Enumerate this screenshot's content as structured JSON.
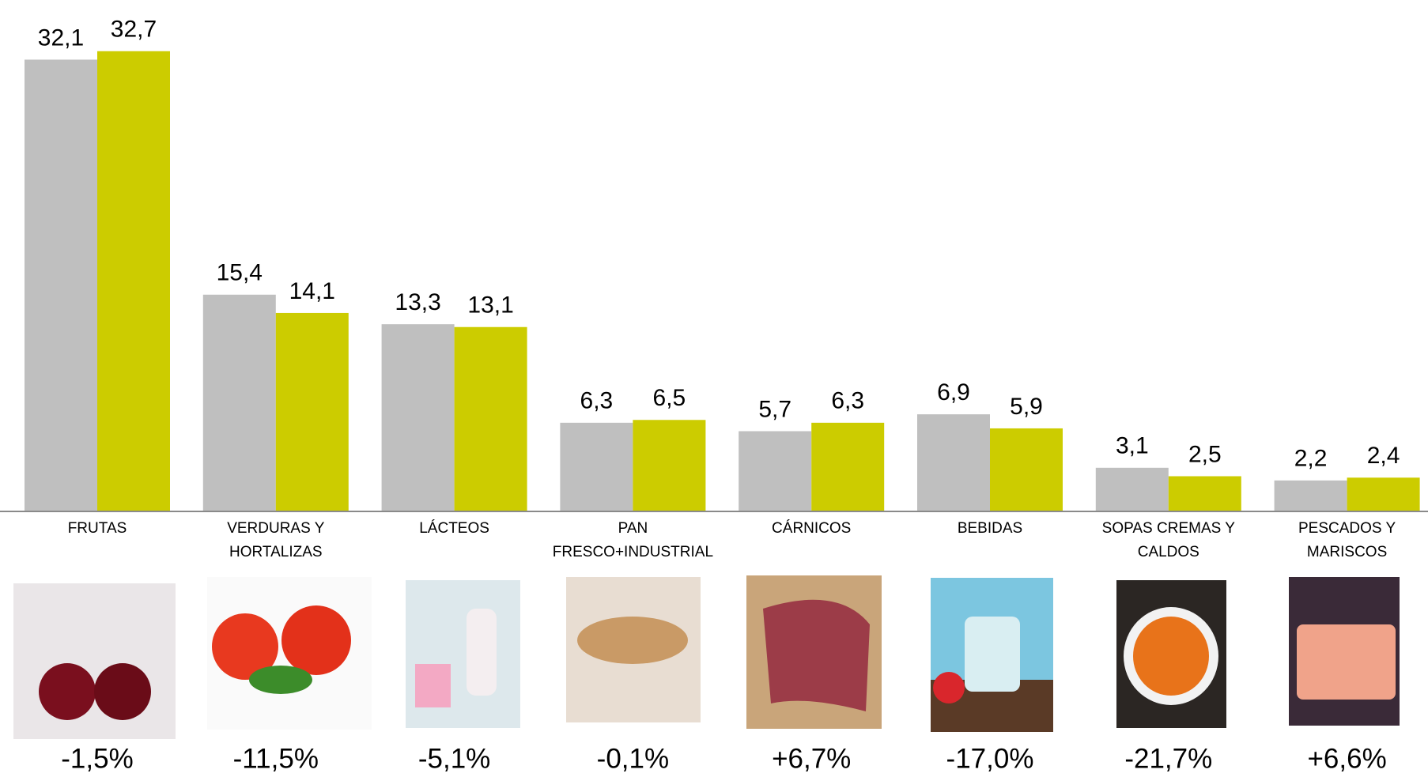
{
  "chart_data": {
    "type": "bar",
    "categories": [
      "FRUTAS",
      "VERDURAS Y\nHORTALIZAS",
      "LÁCTEOS",
      "PAN\nFRESCO+INDUSTRIAL",
      "CÁRNICOS",
      "BEBIDAS",
      "SOPAS CREMAS Y\nCALDOS",
      "PESCADOS Y\nMARISCOS"
    ],
    "series": [
      {
        "color": "#bfbfbf",
        "values": [
          32.1,
          15.4,
          13.3,
          6.3,
          5.7,
          6.9,
          3.1,
          2.2
        ],
        "value_labels": [
          "32,1",
          "15,4",
          "13,3",
          "6,3",
          "5,7",
          "6,9",
          "3,1",
          "2,2"
        ]
      },
      {
        "color": "#cccc00",
        "values": [
          32.7,
          14.1,
          13.1,
          6.5,
          6.3,
          5.9,
          2.5,
          2.4
        ],
        "value_labels": [
          "32,7",
          "14,1",
          "13,1",
          "6,5",
          "6,3",
          "5,9",
          "2,5",
          "2,4"
        ]
      }
    ],
    "changes": [
      -1.5,
      -11.5,
      -5.1,
      -0.1,
      6.7,
      -17.0,
      -21.7,
      6.6
    ],
    "change_labels": [
      "-1,5%",
      "-11,5%",
      "-5,1%",
      "-0,1%",
      "+6,7%",
      "-17,0%",
      "-21,7%",
      "+6,6%"
    ],
    "change_colors": {
      "down": "#22b14c",
      "up": "#c00000"
    },
    "ylim": [
      0,
      36
    ]
  }
}
